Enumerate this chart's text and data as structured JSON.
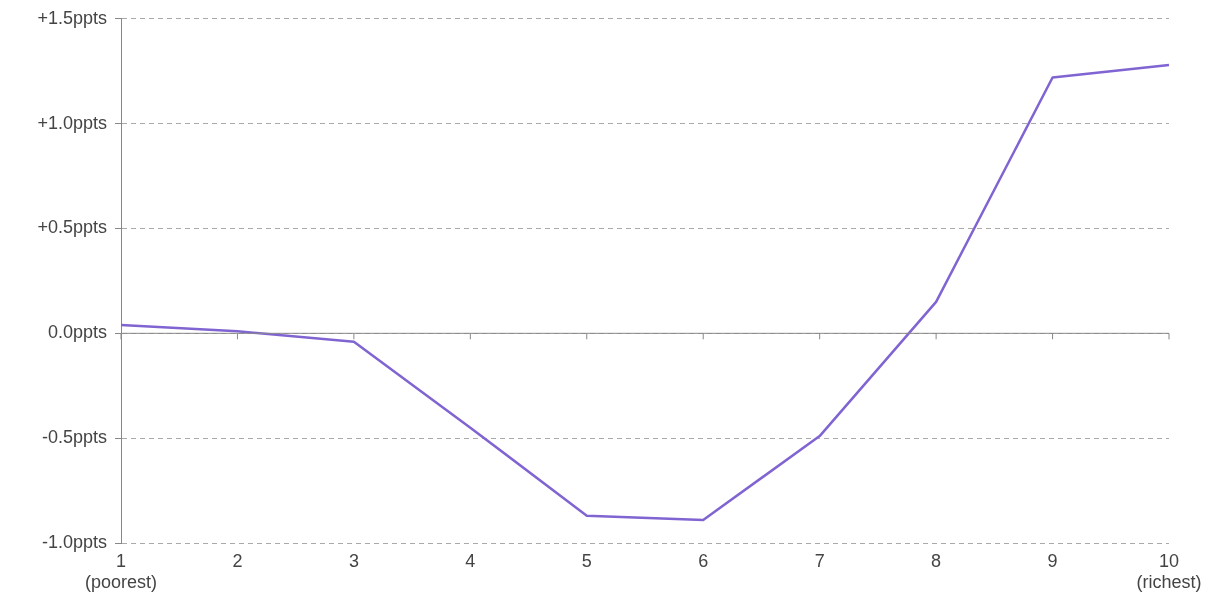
{
  "chart_data": {
    "type": "line",
    "categories": [
      "1\n(poorest)",
      "2",
      "3",
      "4",
      "5",
      "6",
      "7",
      "8",
      "9",
      "10\n(richest)"
    ],
    "series": [
      {
        "color": "#8064d2",
        "values": [
          0.04,
          0.01,
          -0.04,
          -0.45,
          -0.87,
          -0.89,
          -0.49,
          0.15,
          1.22,
          1.28
        ]
      }
    ],
    "ylim": [
      -1.0,
      1.5
    ],
    "yticks": [
      {
        "value": -1.0,
        "label": "-1.0ppts"
      },
      {
        "value": -0.5,
        "label": "-0.5ppts"
      },
      {
        "value": 0,
        "label": "0.0ppts"
      },
      {
        "value": 0.5,
        "label": "+0.5ppts"
      },
      {
        "value": 1.0,
        "label": "+1.0ppts"
      },
      {
        "value": 1.5,
        "label": "+1.5ppts"
      }
    ],
    "grid": "y",
    "legend": false,
    "marker": "none",
    "line_style": "solid"
  }
}
